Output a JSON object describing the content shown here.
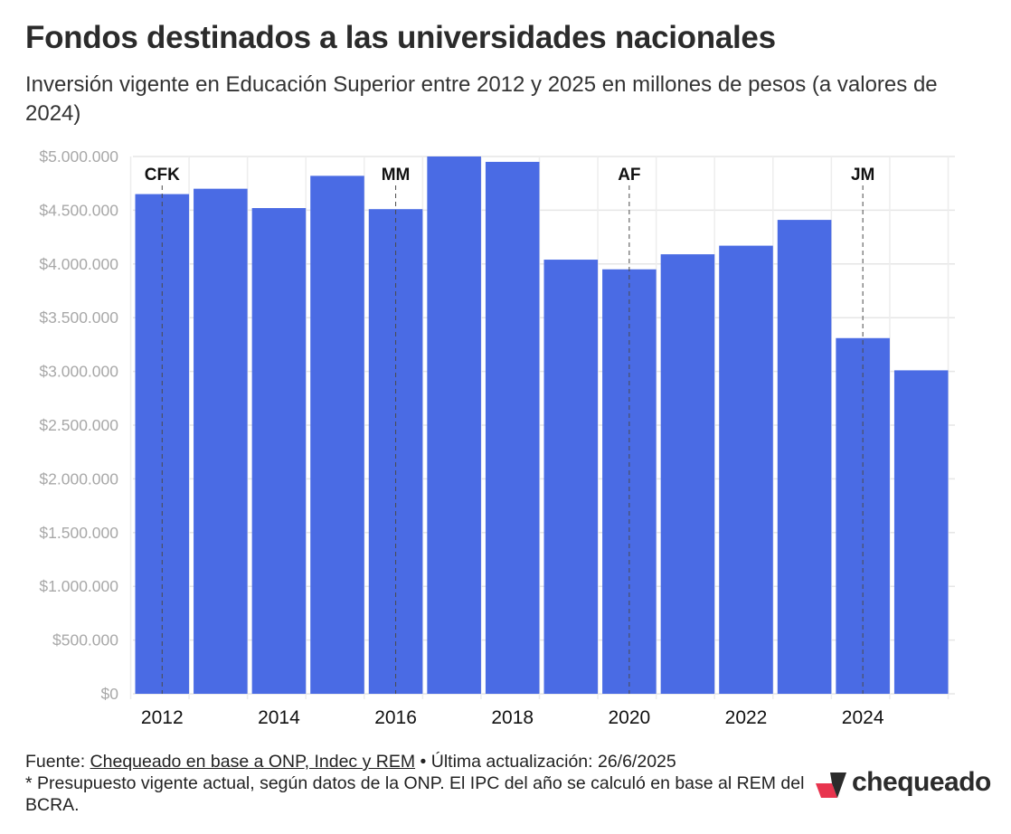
{
  "title": "Fondos destinados a las universidades nacionales",
  "subtitle": "Inversión vigente en Educación Superior entre 2012 y 2025 en millones de pesos (a valores de 2024)",
  "footer": {
    "source_prefix": "Fuente: ",
    "source_link": "Chequeado en base a ONP, Indec y REM",
    "update": " • Última actualización: 26/6/2025",
    "note": "* Presupuesto vigente actual, según datos de la ONP. El IPC del año se calculó en base al REM del BCRA."
  },
  "logo": {
    "text": "chequeado",
    "icon": "chequeado-logo-icon",
    "colors": [
      "#e8344e",
      "#2b2b2b"
    ]
  },
  "chart_data": {
    "type": "bar",
    "x": [
      2012,
      2013,
      2014,
      2015,
      2016,
      2017,
      2018,
      2019,
      2020,
      2021,
      2022,
      2023,
      2024,
      2025
    ],
    "values": [
      4650000,
      4700000,
      4520000,
      4820000,
      4510000,
      5000000,
      4950000,
      4040000,
      3950000,
      4090000,
      4170000,
      4410000,
      3310000,
      3010000
    ],
    "x_tick_labels": [
      "2012",
      "2014",
      "2016",
      "2018",
      "2020",
      "2022",
      "2024"
    ],
    "y_ticks": [
      0,
      500000,
      1000000,
      1500000,
      2000000,
      2500000,
      3000000,
      3500000,
      4000000,
      4500000,
      5000000
    ],
    "y_tick_labels": [
      "$0",
      "$500.000",
      "$1.000.000",
      "$1.500.000",
      "$2.000.000",
      "$2.500.000",
      "$3.000.000",
      "$3.500.000",
      "$4.000.000",
      "$4.500.000",
      "$5.000.000"
    ],
    "ylim": [
      0,
      5000000
    ],
    "grid": true,
    "bar_color": "#4a6be4",
    "annotations": [
      {
        "label": "CFK",
        "x": 2012
      },
      {
        "label": "MM",
        "x": 2016
      },
      {
        "label": "AF",
        "x": 2020
      },
      {
        "label": "JM",
        "x": 2024
      }
    ]
  }
}
